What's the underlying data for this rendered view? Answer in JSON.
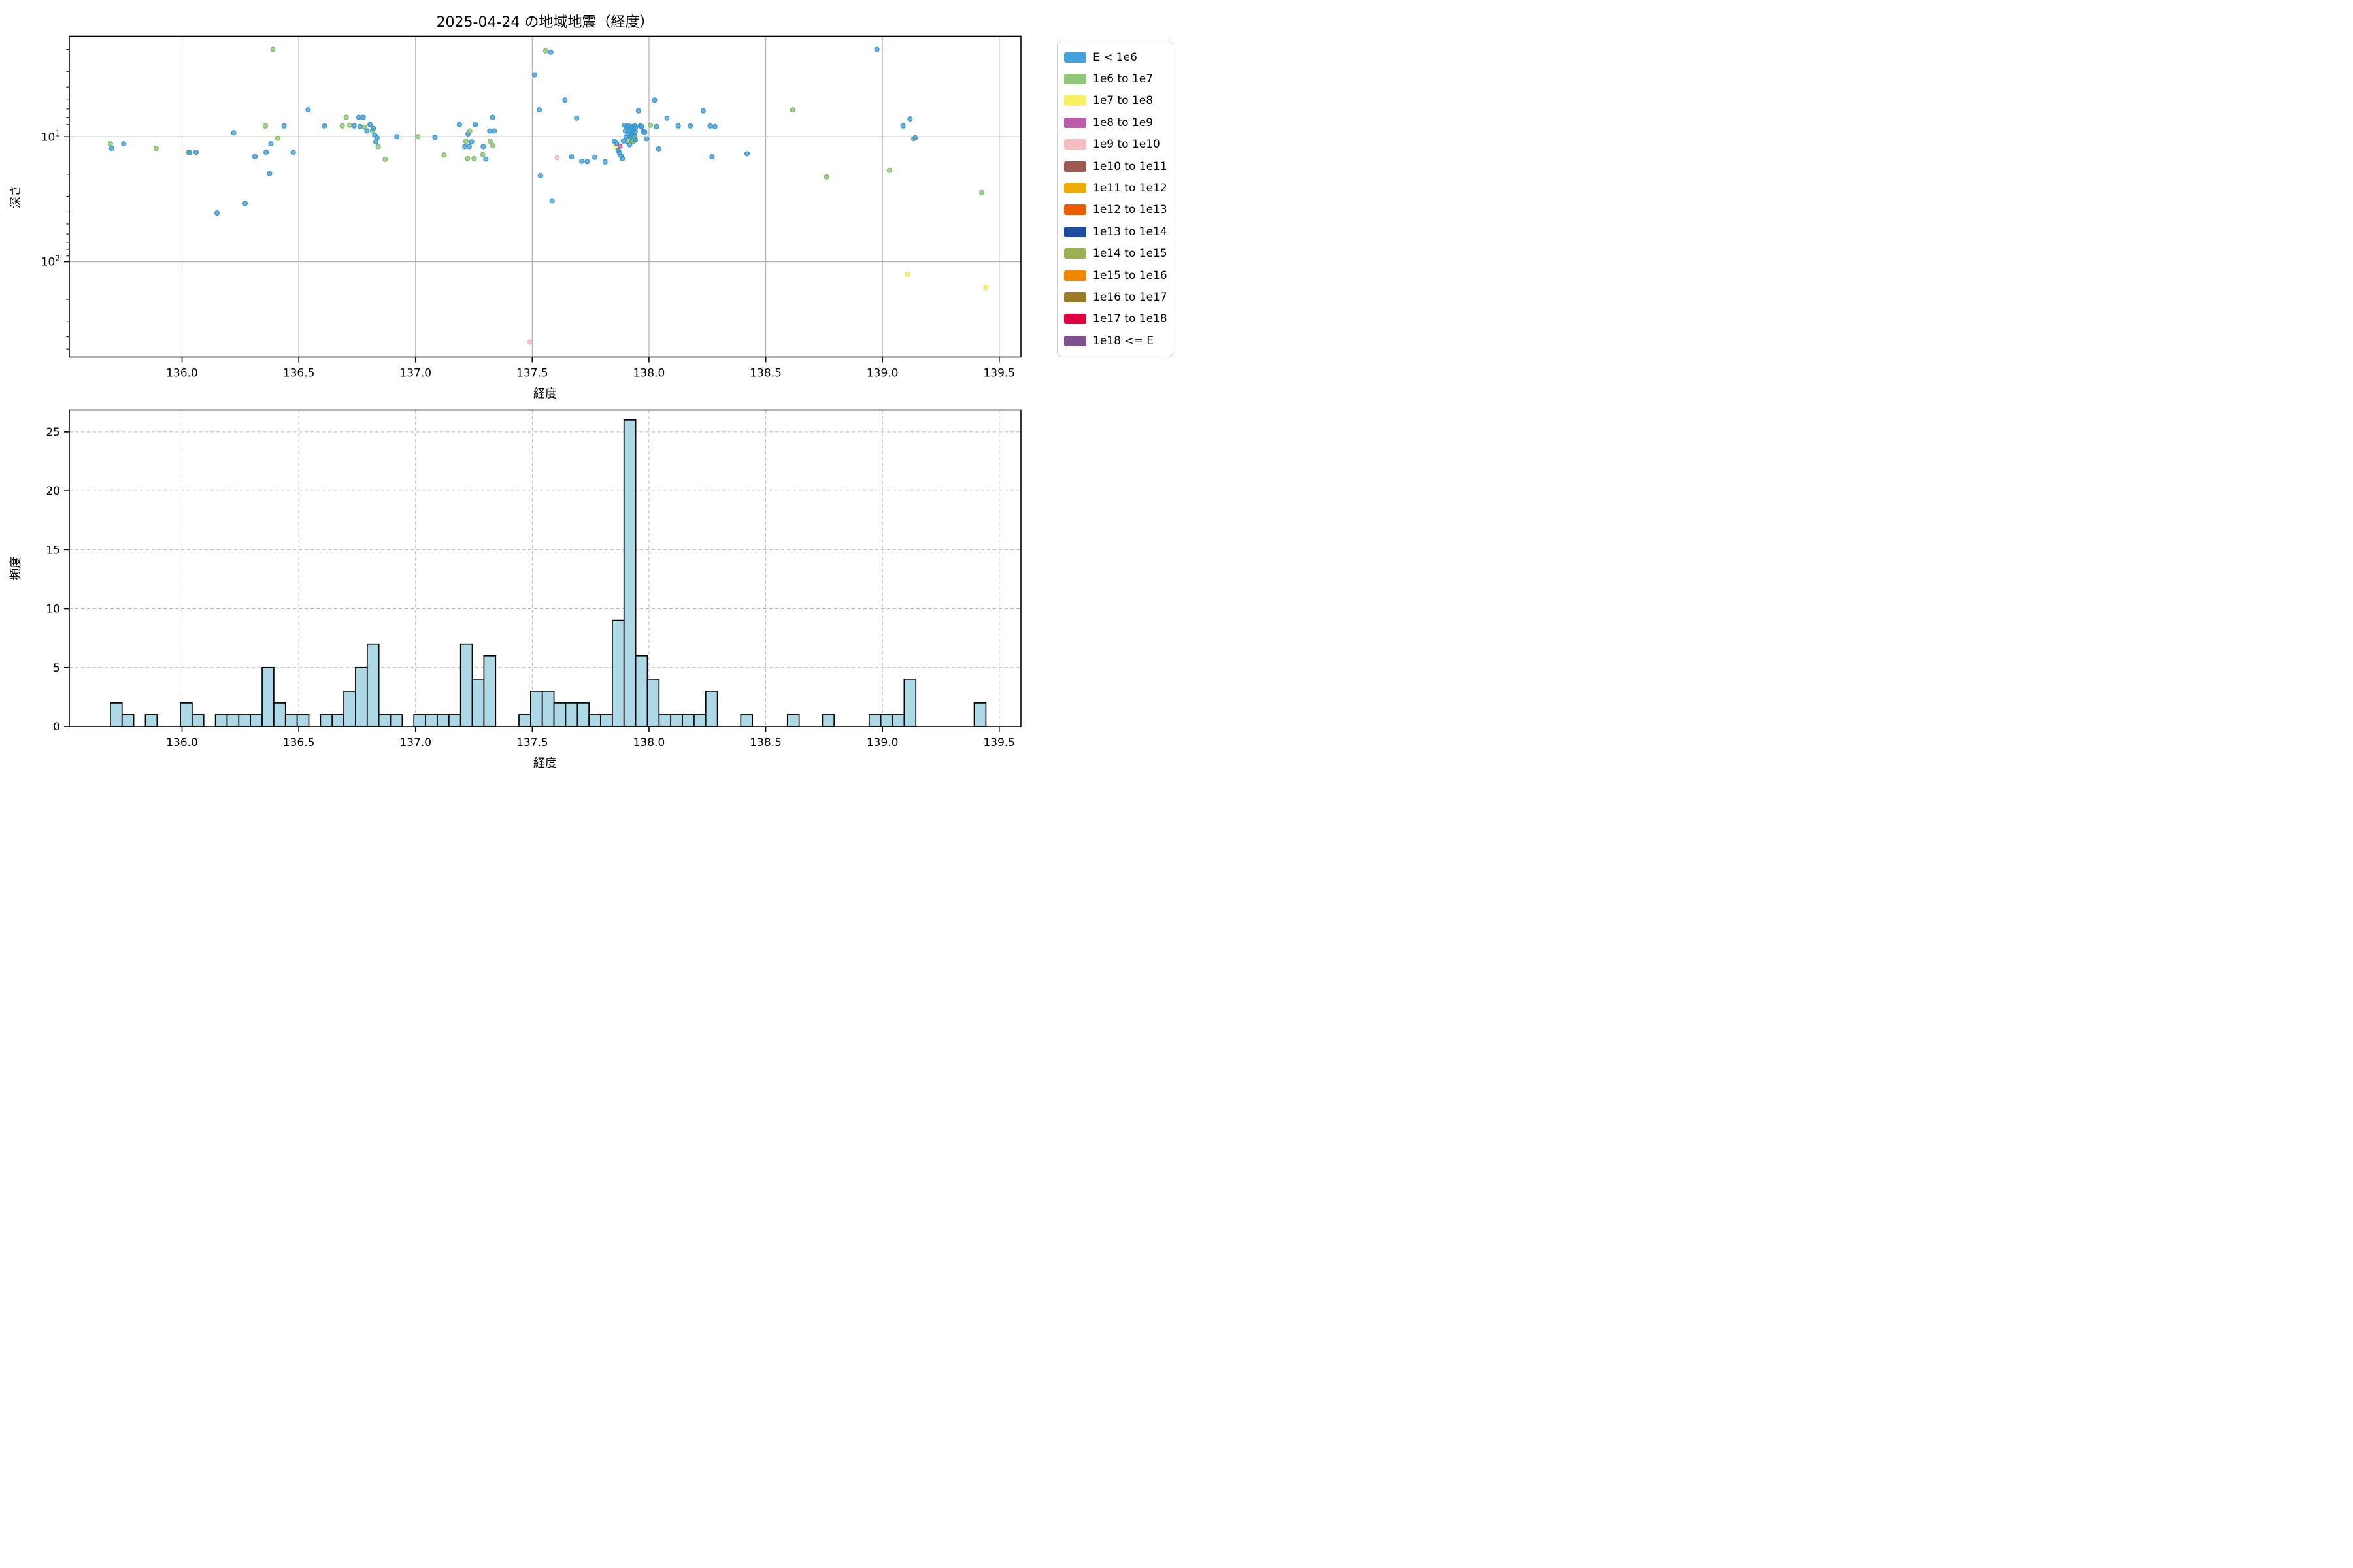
{
  "title": "2025-04-24 の地域地震（経度）",
  "top_plot": {
    "xlabel": "経度",
    "ylabel": "深さ",
    "x_ticks": [
      {
        "value": 136.0,
        "label": "136.0"
      },
      {
        "value": 136.5,
        "label": "136.5"
      },
      {
        "value": 137.0,
        "label": "137.0"
      },
      {
        "value": 137.5,
        "label": "137.5"
      },
      {
        "value": 138.0,
        "label": "138.0"
      },
      {
        "value": 138.5,
        "label": "138.5"
      },
      {
        "value": 139.0,
        "label": "139.0"
      },
      {
        "value": 139.5,
        "label": "139.5"
      }
    ],
    "y_ticks": [
      {
        "value": 10,
        "base": "10",
        "exp": "1"
      },
      {
        "value": 100,
        "base": "10",
        "exp": "2"
      }
    ],
    "xlim": [
      135.517,
      139.593
    ],
    "depth_lim_top": 1.57,
    "depth_lim_bottom": 580,
    "yscale": "log-inverted"
  },
  "bottom_plot": {
    "xlabel": "経度",
    "ylabel": "頻度",
    "x_ticks": [
      {
        "value": 136.0,
        "label": "136.0"
      },
      {
        "value": 136.5,
        "label": "136.5"
      },
      {
        "value": 137.0,
        "label": "137.0"
      },
      {
        "value": 137.5,
        "label": "137.5"
      },
      {
        "value": 138.0,
        "label": "138.0"
      },
      {
        "value": 138.5,
        "label": "138.5"
      },
      {
        "value": 139.0,
        "label": "139.0"
      },
      {
        "value": 139.5,
        "label": "139.5"
      }
    ],
    "y_ticks": [
      {
        "value": 0,
        "label": "0"
      },
      {
        "value": 5,
        "label": "5"
      },
      {
        "value": 10,
        "label": "10"
      },
      {
        "value": 15,
        "label": "15"
      },
      {
        "value": 20,
        "label": "20"
      },
      {
        "value": 25,
        "label": "25"
      }
    ],
    "xlim": [
      135.517,
      139.593
    ],
    "ylim": [
      0,
      26.85
    ],
    "bar_fill": "#ADD8E6",
    "bar_edge": "#000000"
  },
  "legend": {
    "entries": [
      {
        "label": "E < 1e6",
        "color": "#43a2db"
      },
      {
        "label": "1e6 to 1e7",
        "color": "#8fc978"
      },
      {
        "label": "1e7 to 1e8",
        "color": "#faf162"
      },
      {
        "label": "1e8 to 1e9",
        "color": "#bb5cab"
      },
      {
        "label": "1e9 to 1e10",
        "color": "#f6bdc0"
      },
      {
        "label": "1e10 to 1e11",
        "color": "#9e5a52"
      },
      {
        "label": "1e11 to 1e12",
        "color": "#f0ab00"
      },
      {
        "label": "1e12 to 1e13",
        "color": "#e85d04"
      },
      {
        "label": "1e13 to 1e14",
        "color": "#1c4ba0"
      },
      {
        "label": "1e14 to 1e15",
        "color": "#9cb052"
      },
      {
        "label": "1e15 to 1e16",
        "color": "#f28500"
      },
      {
        "label": "1e16 to 1e17",
        "color": "#9a7b28"
      },
      {
        "label": "1e17 to 1e18",
        "color": "#e00040"
      },
      {
        "label": "1e18 <= E",
        "color": "#7d5190"
      }
    ]
  },
  "class_styles": {
    "b": {
      "fill": "#43a2db",
      "stroke": "#2e8cc7"
    },
    "g": {
      "fill": "#8fc978",
      "stroke": "#74b35e"
    },
    "y": {
      "fill": "#faf162",
      "stroke": "#e3d94a"
    },
    "o": {
      "fill": "#bb5cab",
      "stroke": "#a4478f"
    },
    "p": {
      "fill": "#f6bdc0",
      "stroke": "#eaa6aa"
    }
  },
  "chart_data": [
    {
      "type": "scatter",
      "title": "2025-04-24 の地域地震（経度）",
      "xlabel": "経度",
      "ylabel": "深さ",
      "x_is_longitude": true,
      "y_is_depth_log_inverted": true,
      "series_key": "energy_bin: b=E<1e6, g=1e6-1e7, y=1e7-1e8, o=1e8-1e9, p=1e9-1e10",
      "points": [
        [
          135.693,
          11.4,
          "g"
        ],
        [
          135.698,
          12.4,
          "b"
        ],
        [
          135.75,
          11.4,
          "b"
        ],
        [
          135.889,
          12.4,
          "g"
        ],
        [
          136.026,
          13.3,
          "g"
        ],
        [
          136.032,
          13.4,
          "b"
        ],
        [
          136.06,
          13.3,
          "b"
        ],
        [
          136.15,
          40.8,
          "b"
        ],
        [
          136.221,
          9.3,
          "b"
        ],
        [
          136.27,
          34.1,
          "b"
        ],
        [
          136.312,
          14.4,
          "b"
        ],
        [
          136.357,
          8.2,
          "g"
        ],
        [
          136.36,
          13.3,
          "b"
        ],
        [
          136.375,
          19.7,
          "b"
        ],
        [
          136.38,
          11.4,
          "b"
        ],
        [
          136.389,
          2.0,
          "g"
        ],
        [
          136.41,
          10.3,
          "g"
        ],
        [
          136.437,
          8.2,
          "b"
        ],
        [
          136.476,
          13.3,
          "b"
        ],
        [
          136.54,
          6.1,
          "b"
        ],
        [
          136.61,
          8.2,
          "b"
        ],
        [
          136.686,
          8.2,
          "g"
        ],
        [
          136.703,
          7.0,
          "g"
        ],
        [
          136.718,
          8.1,
          "g"
        ],
        [
          136.737,
          8.2,
          "b"
        ],
        [
          136.757,
          7.0,
          "b"
        ],
        [
          136.762,
          8.3,
          "b"
        ],
        [
          136.776,
          7.0,
          "b"
        ],
        [
          136.781,
          8.4,
          "g"
        ],
        [
          136.792,
          9.0,
          "b"
        ],
        [
          136.805,
          8.0,
          "b"
        ],
        [
          136.815,
          9.0,
          "g"
        ],
        [
          136.82,
          8.6,
          "b"
        ],
        [
          136.825,
          9.7,
          "b"
        ],
        [
          136.83,
          11.0,
          "b"
        ],
        [
          136.835,
          10.2,
          "b"
        ],
        [
          136.84,
          12.0,
          "g"
        ],
        [
          136.87,
          15.2,
          "g"
        ],
        [
          136.92,
          10.0,
          "b"
        ],
        [
          137.01,
          10.0,
          "g"
        ],
        [
          137.083,
          10.1,
          "b"
        ],
        [
          137.122,
          14.0,
          "g"
        ],
        [
          137.188,
          8.0,
          "b"
        ],
        [
          137.211,
          12.0,
          "b"
        ],
        [
          137.216,
          10.9,
          "g"
        ],
        [
          137.223,
          15.0,
          "g"
        ],
        [
          137.225,
          9.5,
          "b"
        ],
        [
          137.23,
          12.0,
          "b"
        ],
        [
          137.232,
          9.0,
          "g"
        ],
        [
          137.24,
          11.0,
          "b"
        ],
        [
          137.251,
          15.0,
          "g"
        ],
        [
          137.256,
          8.0,
          "b"
        ],
        [
          137.288,
          13.9,
          "g"
        ],
        [
          137.29,
          12.0,
          "b"
        ],
        [
          137.301,
          15.1,
          "b"
        ],
        [
          137.318,
          9.0,
          "b"
        ],
        [
          137.32,
          10.9,
          "g"
        ],
        [
          137.33,
          7.0,
          "b"
        ],
        [
          137.331,
          11.8,
          "g"
        ],
        [
          137.337,
          9.0,
          "b"
        ],
        [
          137.49,
          440,
          "p"
        ],
        [
          137.51,
          3.2,
          "b"
        ],
        [
          137.53,
          6.1,
          "b"
        ],
        [
          137.535,
          20.5,
          "b"
        ],
        [
          137.557,
          2.05,
          "g"
        ],
        [
          137.579,
          2.1,
          "b"
        ],
        [
          137.585,
          32.6,
          "b"
        ],
        [
          137.607,
          14.7,
          "p"
        ],
        [
          137.64,
          5.1,
          "b"
        ],
        [
          137.668,
          14.5,
          "b"
        ],
        [
          137.69,
          7.1,
          "b"
        ],
        [
          137.712,
          15.7,
          "b"
        ],
        [
          137.735,
          15.8,
          "b"
        ],
        [
          137.768,
          14.6,
          "b"
        ],
        [
          137.812,
          15.9,
          "b"
        ],
        [
          137.852,
          10.9,
          "b"
        ],
        [
          137.859,
          12.1,
          "y"
        ],
        [
          137.861,
          11.3,
          "b"
        ],
        [
          137.868,
          12.9,
          "b"
        ],
        [
          137.873,
          13.4,
          "b"
        ],
        [
          137.876,
          11.9,
          "o"
        ],
        [
          137.88,
          14.2,
          "b"
        ],
        [
          137.886,
          15.0,
          "b"
        ],
        [
          137.89,
          10.8,
          "b"
        ],
        [
          137.896,
          8.1,
          "b"
        ],
        [
          137.899,
          9.0,
          "b"
        ],
        [
          137.902,
          10.0,
          "b"
        ],
        [
          137.905,
          8.4,
          "b"
        ],
        [
          137.907,
          11.0,
          "b"
        ],
        [
          137.909,
          9.4,
          "b"
        ],
        [
          137.911,
          10.4,
          "b"
        ],
        [
          137.913,
          8.2,
          "b"
        ],
        [
          137.915,
          9.0,
          "b"
        ],
        [
          137.917,
          11.6,
          "b"
        ],
        [
          137.919,
          10.7,
          "y"
        ],
        [
          137.921,
          10.0,
          "b"
        ],
        [
          137.923,
          8.6,
          "b"
        ],
        [
          137.925,
          9.6,
          "b"
        ],
        [
          137.927,
          10.8,
          "b"
        ],
        [
          137.929,
          8.3,
          "b"
        ],
        [
          137.931,
          9.2,
          "b"
        ],
        [
          137.933,
          10.2,
          "b"
        ],
        [
          137.934,
          10.9,
          "g"
        ],
        [
          137.935,
          8.8,
          "b"
        ],
        [
          137.937,
          9.8,
          "b"
        ],
        [
          137.939,
          8.2,
          "b"
        ],
        [
          137.94,
          10.3,
          "g"
        ],
        [
          137.941,
          9.1,
          "b"
        ],
        [
          137.942,
          10.6,
          "b"
        ],
        [
          137.942,
          8.5,
          "b"
        ],
        [
          137.955,
          6.2,
          "b"
        ],
        [
          137.962,
          8.2,
          "b"
        ],
        [
          137.968,
          8.3,
          "b"
        ],
        [
          137.975,
          9.1,
          "b"
        ],
        [
          137.982,
          9.2,
          "b"
        ],
        [
          137.99,
          10.4,
          "b"
        ],
        [
          138.006,
          8.1,
          "g"
        ],
        [
          138.024,
          5.1,
          "b"
        ],
        [
          138.032,
          8.3,
          "b"
        ],
        [
          138.041,
          12.5,
          "b"
        ],
        [
          138.077,
          7.1,
          "b"
        ],
        [
          138.125,
          8.2,
          "b"
        ],
        [
          138.177,
          8.2,
          "b"
        ],
        [
          138.232,
          6.2,
          "b"
        ],
        [
          138.262,
          8.2,
          "b"
        ],
        [
          138.27,
          14.5,
          "b"
        ],
        [
          138.282,
          8.3,
          "b"
        ],
        [
          138.42,
          13.7,
          "b"
        ],
        [
          138.615,
          6.1,
          "g"
        ],
        [
          138.76,
          21.0,
          "g"
        ],
        [
          138.976,
          2.0,
          "b"
        ],
        [
          139.03,
          18.6,
          "g"
        ],
        [
          139.088,
          8.2,
          "b"
        ],
        [
          139.107,
          126,
          "y"
        ],
        [
          139.118,
          7.2,
          "b"
        ],
        [
          139.133,
          10.4,
          "g"
        ],
        [
          139.14,
          10.2,
          "b"
        ],
        [
          139.425,
          28.0,
          "g"
        ],
        [
          139.443,
          161,
          "y"
        ]
      ]
    },
    {
      "type": "bar",
      "subtype": "histogram",
      "xlabel": "経度",
      "ylabel": "頻度",
      "bin_start": 135.693,
      "bin_width": 0.05,
      "counts": [
        2,
        1,
        0,
        1,
        0,
        0,
        2,
        1,
        0,
        1,
        1,
        1,
        1,
        5,
        2,
        1,
        1,
        0,
        1,
        1,
        3,
        5,
        7,
        1,
        1,
        0,
        1,
        1,
        1,
        1,
        7,
        4,
        6,
        0,
        0,
        1,
        3,
        3,
        2,
        2,
        2,
        1,
        1,
        9,
        26,
        6,
        4,
        1,
        1,
        1,
        1,
        3,
        0,
        0,
        1,
        0,
        0,
        0,
        1,
        0,
        0,
        1,
        0,
        0,
        0,
        1,
        1,
        1,
        4,
        0,
        0,
        0,
        0,
        0,
        2
      ],
      "ylim": [
        0,
        26.85
      ],
      "grid": "dashed"
    }
  ]
}
